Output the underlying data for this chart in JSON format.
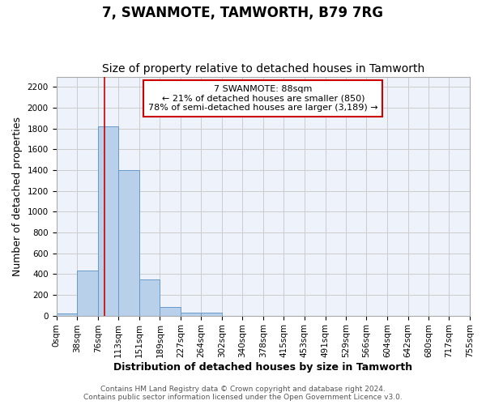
{
  "title": "7, SWANMOTE, TAMWORTH, B79 7RG",
  "subtitle": "Size of property relative to detached houses in Tamworth",
  "xlabel": "Distribution of detached houses by size in Tamworth",
  "ylabel": "Number of detached properties",
  "bar_color": "#b8d0ea",
  "bar_edge_color": "#6699cc",
  "bin_edges": [
    0,
    38,
    76,
    113,
    151,
    189,
    227,
    264,
    302,
    340,
    378,
    415,
    453,
    491,
    529,
    566,
    604,
    642,
    680,
    717,
    755
  ],
  "bar_heights": [
    20,
    430,
    1820,
    1400,
    350,
    80,
    30,
    30,
    0,
    0,
    0,
    0,
    0,
    0,
    0,
    0,
    0,
    0,
    0,
    0
  ],
  "ylim": [
    0,
    2300
  ],
  "xlim": [
    0,
    755
  ],
  "yticks": [
    0,
    200,
    400,
    600,
    800,
    1000,
    1200,
    1400,
    1600,
    1800,
    2000,
    2200
  ],
  "xtick_labels": [
    "0sqm",
    "38sqm",
    "76sqm",
    "113sqm",
    "151sqm",
    "189sqm",
    "227sqm",
    "264sqm",
    "302sqm",
    "340sqm",
    "378sqm",
    "415sqm",
    "453sqm",
    "491sqm",
    "529sqm",
    "566sqm",
    "604sqm",
    "642sqm",
    "680sqm",
    "717sqm",
    "755sqm"
  ],
  "property_size": 88,
  "red_line_color": "#cc0000",
  "annotation_line1": "7 SWANMOTE: 88sqm",
  "annotation_line2": "← 21% of detached houses are smaller (850)",
  "annotation_line3": "78% of semi-detached houses are larger (3,189) →",
  "annotation_box_color": "#cc0000",
  "annotation_fill": "white",
  "grid_color": "#cccccc",
  "background_color": "#eef2fa",
  "footer_text": "Contains HM Land Registry data © Crown copyright and database right 2024.\nContains public sector information licensed under the Open Government Licence v3.0.",
  "title_fontsize": 12,
  "subtitle_fontsize": 10,
  "axis_label_fontsize": 9,
  "tick_fontsize": 7.5,
  "annotation_fontsize": 8,
  "footer_fontsize": 6.5
}
